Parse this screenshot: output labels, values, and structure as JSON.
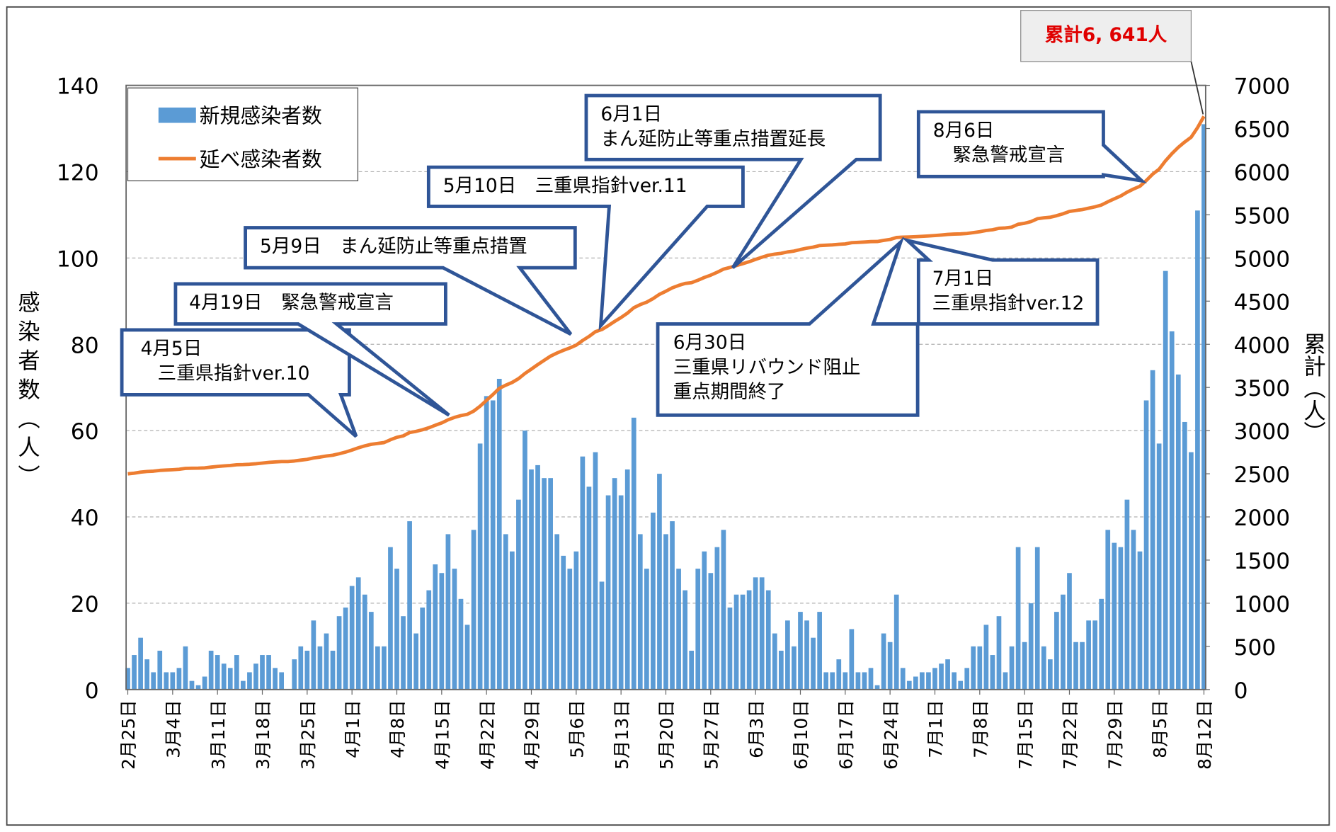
{
  "chart_data": {
    "type": "bar_line",
    "y_label": "感染者数（人）",
    "y2_label": "累計（人）",
    "ylim": [
      0,
      140
    ],
    "yticks": [
      0,
      20,
      40,
      60,
      80,
      100,
      120,
      140
    ],
    "y2lim": [
      0,
      7000
    ],
    "y2ticks": [
      0,
      500,
      1000,
      1500,
      2000,
      2500,
      3000,
      3500,
      4000,
      4500,
      5000,
      5500,
      6000,
      6500,
      7000
    ],
    "grid": true,
    "legend": "top-left",
    "total_label": "累計6, 641人",
    "annotations": [
      {
        "lines": [
          "4月5日",
          "三重県指針ver.10"
        ]
      },
      {
        "lines": [
          "4月19日　緊急警戒宣言"
        ]
      },
      {
        "lines": [
          "5月9日　まん延防止等重点措置"
        ]
      },
      {
        "lines": [
          "5月10日　三重県指針ver.11"
        ]
      },
      {
        "lines": [
          "6月1日",
          "まん延防止等重点措置延長"
        ]
      },
      {
        "lines": [
          "8月6日",
          "緊急警戒宣言"
        ]
      },
      {
        "lines": [
          "7月1日",
          "三重県指針ver.12"
        ]
      },
      {
        "lines": [
          "6月30日",
          "三重県リバウンド阻止",
          "重点期間終了"
        ]
      }
    ],
    "categories": [
      "2月25日",
      null,
      null,
      null,
      null,
      null,
      null,
      "3月4日",
      null,
      null,
      null,
      null,
      null,
      null,
      "3月11日",
      null,
      null,
      null,
      null,
      null,
      null,
      "3月18日",
      null,
      null,
      null,
      null,
      null,
      null,
      "3月25日",
      null,
      null,
      null,
      null,
      null,
      null,
      "4月1日",
      null,
      null,
      null,
      null,
      null,
      null,
      "4月8日",
      null,
      null,
      null,
      null,
      null,
      null,
      "4月15日",
      null,
      null,
      null,
      null,
      null,
      null,
      "4月22日",
      null,
      null,
      null,
      null,
      null,
      null,
      "4月29日",
      null,
      null,
      null,
      null,
      null,
      null,
      "5月6日",
      null,
      null,
      null,
      null,
      null,
      null,
      "5月13日",
      null,
      null,
      null,
      null,
      null,
      null,
      "5月20日",
      null,
      null,
      null,
      null,
      null,
      null,
      "5月27日",
      null,
      null,
      null,
      null,
      null,
      null,
      "6月3日",
      null,
      null,
      null,
      null,
      null,
      null,
      "6月10日",
      null,
      null,
      null,
      null,
      null,
      null,
      "6月17日",
      null,
      null,
      null,
      null,
      null,
      null,
      "6月24日",
      null,
      null,
      null,
      null,
      null,
      null,
      "7月1日",
      null,
      null,
      null,
      null,
      null,
      null,
      "7月8日",
      null,
      null,
      null,
      null,
      null,
      null,
      "7月15日",
      null,
      null,
      null,
      null,
      null,
      null,
      "7月22日",
      null,
      null,
      null,
      null,
      null,
      null,
      "7月29日",
      null,
      null,
      null,
      null,
      null,
      null,
      "8月5日",
      null,
      null,
      null,
      null,
      null,
      null,
      "8月12日"
    ],
    "series": [
      {
        "name": "新規感染者数",
        "color": "#5b9bd5",
        "type": "bar",
        "values": [
          5,
          8,
          12,
          7,
          4,
          9,
          4,
          4,
          5,
          10,
          2,
          1,
          3,
          9,
          8,
          6,
          5,
          8,
          2,
          4,
          6,
          8,
          8,
          5,
          4,
          0,
          7,
          10,
          9,
          16,
          10,
          13,
          9,
          17,
          19,
          24,
          26,
          22,
          18,
          10,
          10,
          33,
          28,
          17,
          39,
          13,
          19,
          23,
          29,
          27,
          36,
          28,
          21,
          15,
          37,
          57,
          68,
          67,
          72,
          36,
          32,
          44,
          60,
          51,
          52,
          49,
          49,
          36,
          31,
          28,
          32,
          54,
          47,
          55,
          25,
          45,
          49,
          45,
          51,
          63,
          36,
          28,
          41,
          50,
          36,
          39,
          28,
          23,
          9,
          28,
          32,
          27,
          33,
          37,
          19,
          22,
          22,
          23,
          26,
          26,
          23,
          13,
          9,
          16,
          10,
          18,
          16,
          12,
          18,
          4,
          4,
          7,
          4,
          14,
          4,
          4,
          5,
          1,
          13,
          11,
          22,
          5,
          2,
          3,
          4,
          4,
          5,
          6,
          7,
          4,
          2,
          5,
          10,
          10,
          15,
          8,
          17,
          4,
          10,
          33,
          11,
          20,
          33,
          10,
          7,
          18,
          22,
          27,
          11,
          11,
          16,
          16,
          21,
          37,
          34,
          33,
          44,
          37,
          32,
          67,
          74,
          57,
          97,
          83,
          73,
          62,
          55,
          111,
          131
        ]
      },
      {
        "name": "延べ感染者数",
        "color": "#ed7d31",
        "type": "line",
        "axis": "y2",
        "values": [
          2499,
          2507,
          2519,
          2526,
          2530,
          2539,
          2543,
          2547,
          2552,
          2562,
          2564,
          2565,
          2568,
          2577,
          2585,
          2591,
          2596,
          2604,
          2606,
          2610,
          2616,
          2624,
          2632,
          2637,
          2641,
          2641,
          2648,
          2658,
          2667,
          2683,
          2693,
          2706,
          2715,
          2732,
          2751,
          2775,
          2801,
          2823,
          2841,
          2851,
          2861,
          2894,
          2922,
          2939,
          2978,
          2991,
          3010,
          3033,
          3062,
          3089,
          3125,
          3153,
          3174,
          3189,
          3226,
          3283,
          3351,
          3418,
          3490,
          3526,
          3558,
          3602,
          3662,
          3713,
          3765,
          3814,
          3863,
          3899,
          3930,
          3958,
          3990,
          4044,
          4091,
          4146,
          4171,
          4216,
          4265,
          4310,
          4361,
          4424,
          4460,
          4488,
          4529,
          4579,
          4615,
          4654,
          4682,
          4705,
          4714,
          4742,
          4774,
          4801,
          4834,
          4871,
          4890,
          4912,
          4934,
          4957,
          4983,
          5009,
          5032,
          5045,
          5054,
          5070,
          5080,
          5098,
          5114,
          5126,
          5144,
          5148,
          5152,
          5159,
          5163,
          5177,
          5181,
          5185,
          5190,
          5191,
          5204,
          5215,
          5237,
          5242,
          5244,
          5247,
          5251,
          5255,
          5260,
          5266,
          5273,
          5277,
          5279,
          5284,
          5294,
          5304,
          5319,
          5327,
          5344,
          5348,
          5358,
          5391,
          5402,
          5422,
          5455,
          5465,
          5472,
          5490,
          5512,
          5539,
          5550,
          5561,
          5577,
          5593,
          5614,
          5651,
          5685,
          5718,
          5762,
          5799,
          5831,
          5898,
          5972,
          6029,
          6126,
          6209,
          6282,
          6344,
          6399,
          6510,
          6641
        ]
      }
    ]
  }
}
